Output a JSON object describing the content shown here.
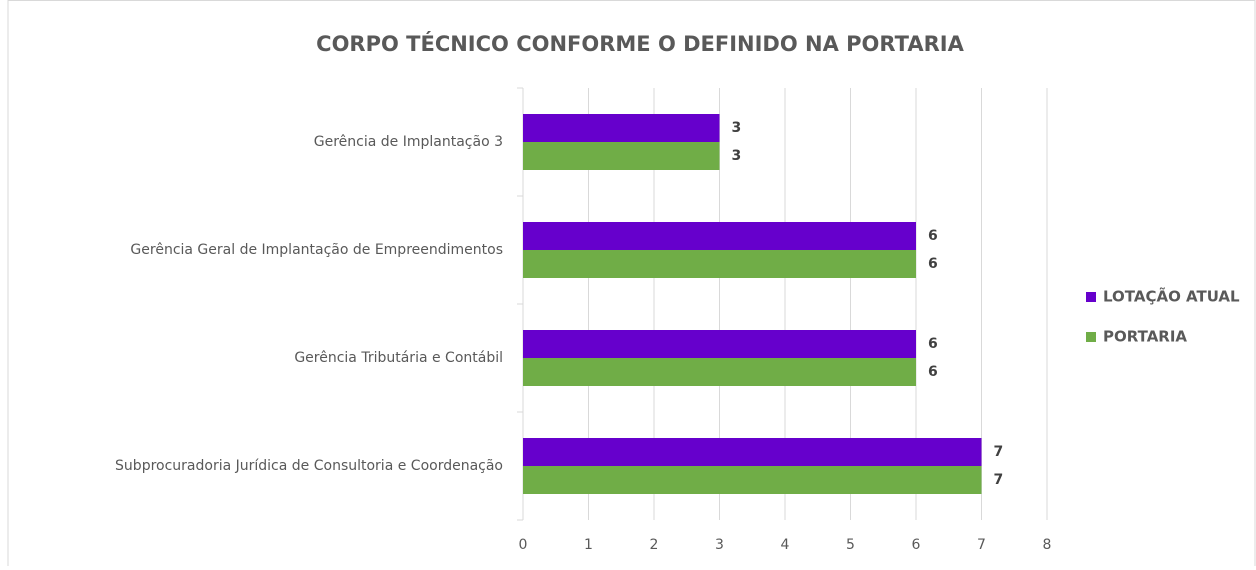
{
  "chart_data": {
    "type": "hbar",
    "title": "CORPO TÉCNICO CONFORME O DEFINIDO NA PORTARIA",
    "categories": [
      "Gerência de Implantação 3",
      "Gerência Geral de Implantação de Empreendimentos",
      "Gerência Tributária e Contábil",
      "Subprocuradoria Jurídica de Consultoria e Coordenação"
    ],
    "series": [
      {
        "name": "LOTAÇÃO ATUAL",
        "color": "#6600cc",
        "values": [
          3,
          6,
          6,
          7
        ]
      },
      {
        "name": "PORTARIA",
        "color": "#70ad47",
        "values": [
          3,
          6,
          6,
          7
        ]
      }
    ],
    "xlim": [
      0,
      8
    ],
    "xticks": [
      0,
      1,
      2,
      3,
      4,
      5,
      6,
      7,
      8
    ],
    "grid": true,
    "legend": "right"
  }
}
